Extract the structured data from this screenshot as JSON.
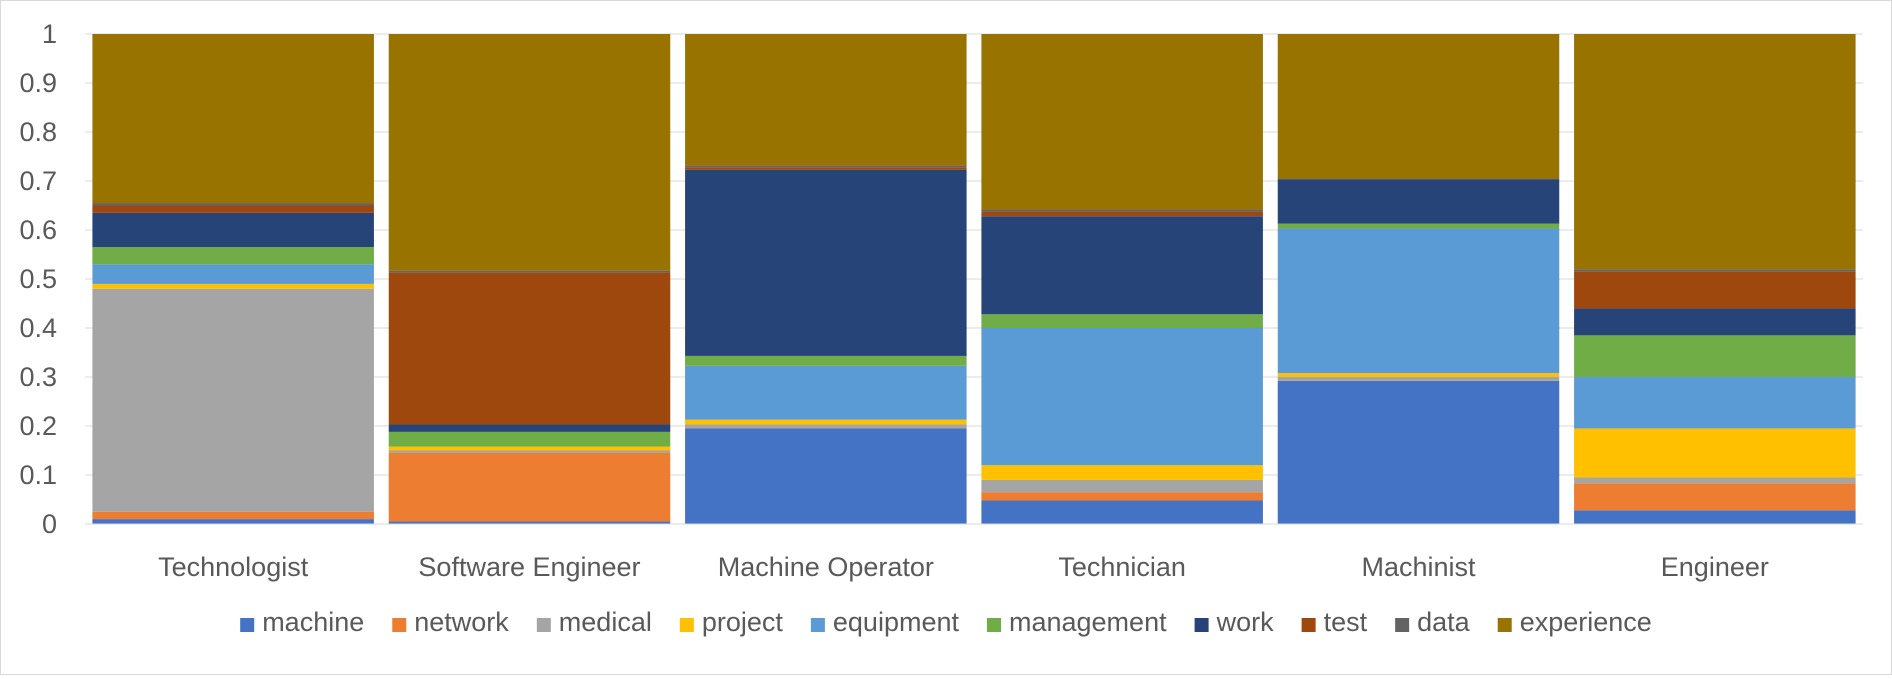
{
  "chart_data": {
    "type": "bar",
    "stacked": true,
    "title": "",
    "xlabel": "",
    "ylabel": "",
    "ylim": [
      0,
      1
    ],
    "yticks": [
      "0",
      "0.1",
      "0.2",
      "0.3",
      "0.4",
      "0.5",
      "0.6",
      "0.7",
      "0.8",
      "0.9",
      "1"
    ],
    "grid": true,
    "legend_position": "bottom",
    "categories": [
      "Technologist",
      "Software Engineer",
      "Machine Operator",
      "Technician",
      "Machinist",
      "Engineer"
    ],
    "series": [
      {
        "name": "machine",
        "color": "#4472C4",
        "values": [
          0.01,
          0.005,
          0.195,
          0.048,
          0.292,
          0.028
        ]
      },
      {
        "name": "network",
        "color": "#ED7D31",
        "values": [
          0.015,
          0.14,
          0.0,
          0.017,
          0.0,
          0.055
        ]
      },
      {
        "name": "medical",
        "color": "#A5A5A5",
        "values": [
          0.455,
          0.005,
          0.008,
          0.025,
          0.008,
          0.012
        ]
      },
      {
        "name": "project",
        "color": "#FFC000",
        "values": [
          0.01,
          0.008,
          0.01,
          0.03,
          0.008,
          0.1
        ]
      },
      {
        "name": "equipment",
        "color": "#5B9BD5",
        "values": [
          0.04,
          0.0,
          0.11,
          0.28,
          0.295,
          0.105
        ]
      },
      {
        "name": "management",
        "color": "#70AD47",
        "values": [
          0.035,
          0.03,
          0.02,
          0.028,
          0.01,
          0.085
        ]
      },
      {
        "name": "work",
        "color": "#264478",
        "values": [
          0.07,
          0.015,
          0.38,
          0.2,
          0.09,
          0.055
        ]
      },
      {
        "name": "test",
        "color": "#9E480E",
        "values": [
          0.015,
          0.31,
          0.005,
          0.01,
          0.0,
          0.075
        ]
      },
      {
        "name": "data",
        "color": "#636363",
        "values": [
          0.005,
          0.004,
          0.004,
          0.004,
          0.002,
          0.005
        ]
      },
      {
        "name": "experience",
        "color": "#997300",
        "values": [
          0.345,
          0.483,
          0.268,
          0.358,
          0.295,
          0.48
        ]
      }
    ]
  }
}
